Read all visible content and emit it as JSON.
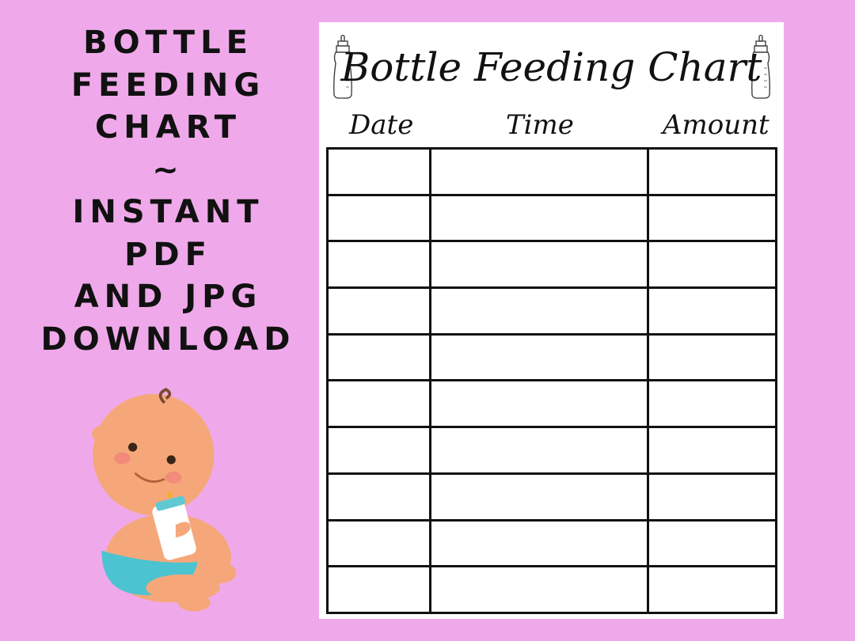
{
  "promo": {
    "lines": [
      "BOTTLE",
      "FEEDING",
      "CHART",
      "~",
      "INSTANT",
      "PDF",
      "AND JPG",
      "DOWNLOAD"
    ]
  },
  "sheet": {
    "title": "Bottle Feeding Chart",
    "columns": [
      "Date",
      "Time",
      "Amount"
    ],
    "row_count": 10,
    "icons": [
      "baby-bottle-icon",
      "baby-bottle-icon"
    ]
  },
  "illustration": "baby-with-bottle",
  "colors": {
    "background": "#efa9ea",
    "paper": "#ffffff",
    "ink": "#111111",
    "skin": "#f5a77a",
    "diaper": "#4cc3d0"
  }
}
